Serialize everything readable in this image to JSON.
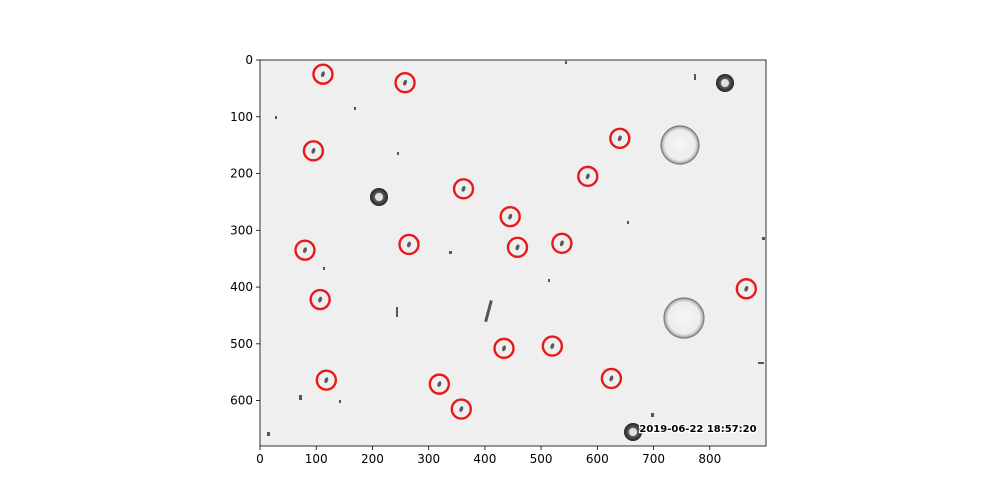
{
  "chart_data": {
    "type": "scatter",
    "title": "",
    "xlabel": "",
    "ylabel": "",
    "xlim": [
      0,
      900
    ],
    "ylim": [
      680,
      0
    ],
    "xticks": [
      0,
      100,
      200,
      300,
      400,
      500,
      600,
      700,
      800
    ],
    "yticks": [
      0,
      100,
      200,
      300,
      400,
      500,
      600
    ],
    "grid": false,
    "marker": "open-circle",
    "marker_color": "#e8191b",
    "background_image": "grayscale microscope image with small dark particles and bubbles",
    "timestamp": "2019-06-22 18:57:20",
    "detections": [
      {
        "x": 112,
        "y": 25
      },
      {
        "x": 258,
        "y": 40
      },
      {
        "x": 640,
        "y": 138
      },
      {
        "x": 95,
        "y": 160
      },
      {
        "x": 583,
        "y": 205
      },
      {
        "x": 362,
        "y": 227
      },
      {
        "x": 445,
        "y": 276
      },
      {
        "x": 80,
        "y": 335
      },
      {
        "x": 265,
        "y": 325
      },
      {
        "x": 458,
        "y": 330
      },
      {
        "x": 537,
        "y": 323
      },
      {
        "x": 865,
        "y": 403
      },
      {
        "x": 107,
        "y": 422
      },
      {
        "x": 434,
        "y": 508
      },
      {
        "x": 520,
        "y": 504
      },
      {
        "x": 118,
        "y": 564
      },
      {
        "x": 319,
        "y": 571
      },
      {
        "x": 625,
        "y": 561
      },
      {
        "x": 358,
        "y": 615
      }
    ]
  }
}
